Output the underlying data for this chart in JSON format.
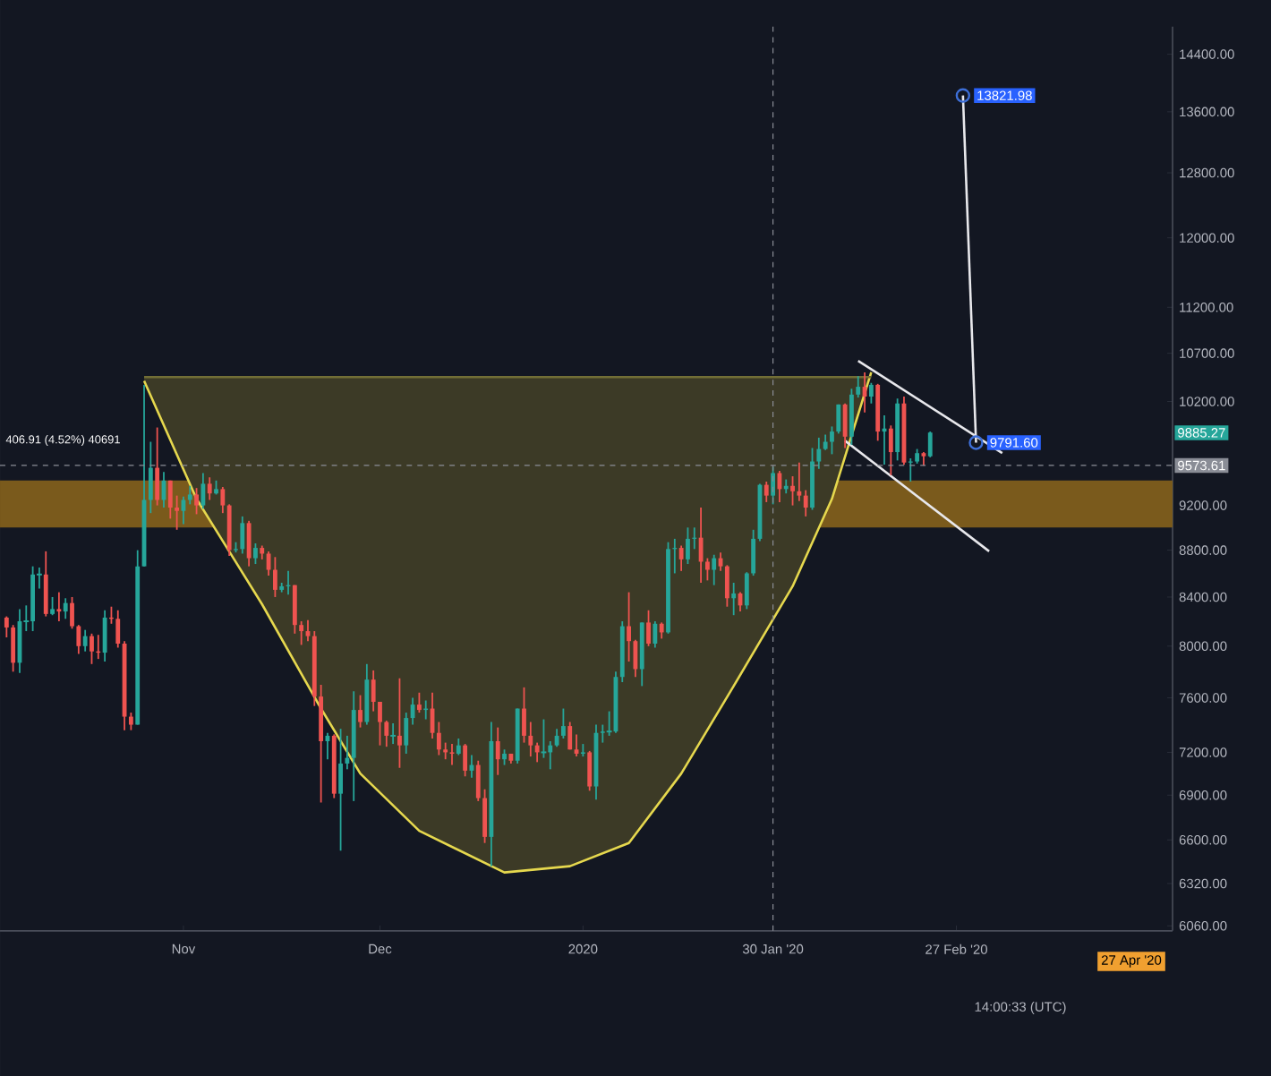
{
  "chart_data": {
    "type": "candlestick",
    "log": true,
    "xlim": [
      "2019-10-04",
      "2020-03-31"
    ],
    "ylim": [
      6030,
      14800
    ],
    "xticks": [
      {
        "value": "2019-11-01",
        "label": "Nov"
      },
      {
        "value": "2019-12-01",
        "label": "Dec"
      },
      {
        "value": "2020-01-01",
        "label": "2020"
      },
      {
        "value": "2020-01-30",
        "label": "30 Jan '20"
      },
      {
        "value": "2020-02-27",
        "label": "27 Feb '20"
      }
    ],
    "yticks": [
      {
        "value": 6060,
        "label": "6060.00"
      },
      {
        "value": 6320,
        "label": "6320.00"
      },
      {
        "value": 6600,
        "label": "6600.00"
      },
      {
        "value": 6900,
        "label": "6900.00"
      },
      {
        "value": 7200,
        "label": "7200.00"
      },
      {
        "value": 7600,
        "label": "7600.00"
      },
      {
        "value": 8000,
        "label": "8000.00"
      },
      {
        "value": 8400,
        "label": "8400.00"
      },
      {
        "value": 8800,
        "label": "8800.00"
      },
      {
        "value": 9200,
        "label": "9200.00"
      },
      {
        "value": 10200,
        "label": "10200.00"
      },
      {
        "value": 10700,
        "label": "10700.00"
      },
      {
        "value": 11200,
        "label": "11200.00"
      },
      {
        "value": 12000,
        "label": "12000.00"
      },
      {
        "value": 12800,
        "label": "12800.00"
      },
      {
        "value": 13600,
        "label": "13600.00"
      },
      {
        "value": 14400,
        "label": "14400.00"
      }
    ],
    "x": [
      "2019-10-05",
      "2019-10-06",
      "2019-10-07",
      "2019-10-08",
      "2019-10-09",
      "2019-10-10",
      "2019-10-11",
      "2019-10-12",
      "2019-10-13",
      "2019-10-14",
      "2019-10-15",
      "2019-10-16",
      "2019-10-17",
      "2019-10-18",
      "2019-10-19",
      "2019-10-20",
      "2019-10-21",
      "2019-10-22",
      "2019-10-23",
      "2019-10-24",
      "2019-10-25",
      "2019-10-26",
      "2019-10-27",
      "2019-10-28",
      "2019-10-29",
      "2019-10-30",
      "2019-10-31",
      "2019-11-01",
      "2019-11-02",
      "2019-11-03",
      "2019-11-04",
      "2019-11-05",
      "2019-11-06",
      "2019-11-07",
      "2019-11-08",
      "2019-11-09",
      "2019-11-10",
      "2019-11-11",
      "2019-11-12",
      "2019-11-13",
      "2019-11-14",
      "2019-11-15",
      "2019-11-16",
      "2019-11-17",
      "2019-11-18",
      "2019-11-19",
      "2019-11-20",
      "2019-11-21",
      "2019-11-22",
      "2019-11-23",
      "2019-11-24",
      "2019-11-25",
      "2019-11-26",
      "2019-11-27",
      "2019-11-28",
      "2019-11-29",
      "2019-11-30",
      "2019-12-01",
      "2019-12-02",
      "2019-12-03",
      "2019-12-04",
      "2019-12-05",
      "2019-12-06",
      "2019-12-07",
      "2019-12-08",
      "2019-12-09",
      "2019-12-10",
      "2019-12-11",
      "2019-12-12",
      "2019-12-13",
      "2019-12-14",
      "2019-12-15",
      "2019-12-16",
      "2019-12-17",
      "2019-12-18",
      "2019-12-19",
      "2019-12-20",
      "2019-12-21",
      "2019-12-22",
      "2019-12-23",
      "2019-12-24",
      "2019-12-25",
      "2019-12-26",
      "2019-12-27",
      "2019-12-28",
      "2019-12-29",
      "2019-12-30",
      "2019-12-31",
      "2020-01-01",
      "2020-01-02",
      "2020-01-03",
      "2020-01-04",
      "2020-01-05",
      "2020-01-06",
      "2020-01-07",
      "2020-01-08",
      "2020-01-09",
      "2020-01-10",
      "2020-01-11",
      "2020-01-12",
      "2020-01-13",
      "2020-01-14",
      "2020-01-15",
      "2020-01-16",
      "2020-01-17",
      "2020-01-18",
      "2020-01-19",
      "2020-01-20",
      "2020-01-21",
      "2020-01-22",
      "2020-01-23",
      "2020-01-24",
      "2020-01-25",
      "2020-01-26",
      "2020-01-27",
      "2020-01-28",
      "2020-01-29",
      "2020-01-30",
      "2020-01-31",
      "2020-02-01",
      "2020-02-02",
      "2020-02-03",
      "2020-02-04",
      "2020-02-05",
      "2020-02-06",
      "2020-02-07",
      "2020-02-08",
      "2020-02-09",
      "2020-02-10",
      "2020-02-11",
      "2020-02-12",
      "2020-02-13",
      "2020-02-14",
      "2020-02-15",
      "2020-02-16",
      "2020-02-17",
      "2020-02-18",
      "2020-02-19",
      "2020-02-20",
      "2020-02-21",
      "2020-02-22",
      "2020-02-23"
    ],
    "ohlc": [
      [
        8230,
        8240,
        8070,
        8150
      ],
      [
        8150,
        8170,
        7800,
        7870
      ],
      [
        7870,
        8300,
        7790,
        8200
      ],
      [
        8200,
        8330,
        8120,
        8200
      ],
      [
        8200,
        8660,
        8120,
        8590
      ],
      [
        8590,
        8650,
        8470,
        8590
      ],
      [
        8590,
        8790,
        8240,
        8260
      ],
      [
        8260,
        8400,
        8250,
        8300
      ],
      [
        8300,
        8440,
        8200,
        8280
      ],
      [
        8280,
        8390,
        8220,
        8350
      ],
      [
        8350,
        8400,
        8140,
        8160
      ],
      [
        8160,
        8170,
        7940,
        8000
      ],
      [
        8000,
        8130,
        7960,
        8080
      ],
      [
        8080,
        8100,
        7860,
        7960
      ],
      [
        7960,
        8090,
        7900,
        7950
      ],
      [
        7950,
        8290,
        7880,
        8230
      ],
      [
        8230,
        8320,
        8180,
        8220
      ],
      [
        8220,
        8290,
        7990,
        8020
      ],
      [
        8020,
        8040,
        7360,
        7460
      ],
      [
        7460,
        7490,
        7360,
        7400
      ],
      [
        7400,
        8800,
        7400,
        8660
      ],
      [
        8660,
        10370,
        8660,
        9250
      ],
      [
        9250,
        9800,
        9130,
        9550
      ],
      [
        9550,
        9940,
        9200,
        9250
      ],
      [
        9250,
        9510,
        9180,
        9430
      ],
      [
        9430,
        9430,
        9080,
        9180
      ],
      [
        9180,
        9290,
        8980,
        9150
      ],
      [
        9150,
        9280,
        9030,
        9250
      ],
      [
        9250,
        9380,
        9210,
        9300
      ],
      [
        9300,
        9360,
        9120,
        9200
      ],
      [
        9200,
        9500,
        9170,
        9400
      ],
      [
        9400,
        9460,
        9250,
        9310
      ],
      [
        9310,
        9430,
        9300,
        9350
      ],
      [
        9350,
        9370,
        9130,
        9200
      ],
      [
        9200,
        9210,
        8750,
        8800
      ],
      [
        8800,
        8870,
        8780,
        8810
      ],
      [
        8810,
        9100,
        8770,
        9040
      ],
      [
        9040,
        9060,
        8660,
        8730
      ],
      [
        8730,
        8860,
        8680,
        8820
      ],
      [
        8820,
        8840,
        8720,
        8770
      ],
      [
        8770,
        8790,
        8580,
        8630
      ],
      [
        8630,
        8740,
        8400,
        8460
      ],
      [
        8460,
        8520,
        8440,
        8490
      ],
      [
        8490,
        8620,
        8420,
        8500
      ],
      [
        8500,
        8500,
        8100,
        8170
      ],
      [
        8170,
        8200,
        8010,
        8120
      ],
      [
        8120,
        8210,
        8040,
        8080
      ],
      [
        8080,
        8120,
        7540,
        7610
      ],
      [
        7610,
        7700,
        6850,
        7280
      ],
      [
        7280,
        7340,
        7150,
        7320
      ],
      [
        7320,
        7330,
        6880,
        6910
      ],
      [
        6910,
        7370,
        6530,
        7120
      ],
      [
        7120,
        7320,
        7080,
        7160
      ],
      [
        7160,
        7650,
        6860,
        7510
      ],
      [
        7510,
        7620,
        7380,
        7420
      ],
      [
        7420,
        7860,
        7400,
        7740
      ],
      [
        7740,
        7810,
        7500,
        7570
      ],
      [
        7570,
        7570,
        7250,
        7420
      ],
      [
        7420,
        7430,
        7240,
        7320
      ],
      [
        7320,
        7410,
        7260,
        7320
      ],
      [
        7320,
        7750,
        7090,
        7250
      ],
      [
        7250,
        7490,
        7190,
        7450
      ],
      [
        7450,
        7600,
        7400,
        7550
      ],
      [
        7550,
        7640,
        7490,
        7510
      ],
      [
        7510,
        7580,
        7440,
        7520
      ],
      [
        7520,
        7640,
        7300,
        7340
      ],
      [
        7340,
        7420,
        7180,
        7220
      ],
      [
        7220,
        7270,
        7150,
        7200
      ],
      [
        7200,
        7260,
        7110,
        7190
      ],
      [
        7190,
        7300,
        7180,
        7250
      ],
      [
        7250,
        7260,
        7030,
        7070
      ],
      [
        7070,
        7180,
        7020,
        7110
      ],
      [
        7110,
        7140,
        6860,
        6880
      ],
      [
        6880,
        6940,
        6580,
        6620
      ],
      [
        6620,
        7420,
        6430,
        7280
      ],
      [
        7280,
        7380,
        7040,
        7150
      ],
      [
        7150,
        7220,
        7110,
        7190
      ],
      [
        7190,
        7190,
        7120,
        7140
      ],
      [
        7140,
        7520,
        7120,
        7520
      ],
      [
        7520,
        7680,
        7270,
        7320
      ],
      [
        7320,
        7420,
        7170,
        7250
      ],
      [
        7250,
        7270,
        7130,
        7200
      ],
      [
        7200,
        7440,
        7160,
        7200
      ],
      [
        7200,
        7280,
        7080,
        7250
      ],
      [
        7250,
        7370,
        7240,
        7320
      ],
      [
        7320,
        7520,
        7300,
        7390
      ],
      [
        7390,
        7420,
        7220,
        7220
      ],
      [
        7220,
        7330,
        7170,
        7190
      ],
      [
        7190,
        7260,
        7170,
        7200
      ],
      [
        7200,
        7210,
        6930,
        6960
      ],
      [
        6960,
        7400,
        6870,
        7340
      ],
      [
        7340,
        7400,
        7270,
        7350
      ],
      [
        7350,
        7500,
        7320,
        7350
      ],
      [
        7350,
        7800,
        7340,
        7760
      ],
      [
        7760,
        8200,
        7720,
        8160
      ],
      [
        8160,
        8440,
        7880,
        8040
      ],
      [
        8040,
        8050,
        7760,
        7820
      ],
      [
        7820,
        8190,
        7690,
        8190
      ],
      [
        8190,
        8290,
        8000,
        8020
      ],
      [
        8020,
        8200,
        7990,
        8180
      ],
      [
        8180,
        8190,
        8060,
        8110
      ],
      [
        8110,
        8870,
        8100,
        8810
      ],
      [
        8810,
        8900,
        8600,
        8820
      ],
      [
        8820,
        8840,
        8620,
        8720
      ],
      [
        8720,
        9000,
        8680,
        8900
      ],
      [
        8900,
        9000,
        8810,
        8910
      ],
      [
        8910,
        9180,
        8520,
        8700
      ],
      [
        8700,
        8730,
        8540,
        8630
      ],
      [
        8630,
        8760,
        8500,
        8730
      ],
      [
        8730,
        8780,
        8620,
        8660
      ],
      [
        8660,
        8670,
        8320,
        8390
      ],
      [
        8390,
        8520,
        8250,
        8430
      ],
      [
        8430,
        8440,
        8280,
        8330
      ],
      [
        8330,
        8610,
        8300,
        8600
      ],
      [
        8600,
        8980,
        8580,
        8900
      ],
      [
        8900,
        9400,
        8880,
        9390
      ],
      [
        9390,
        9420,
        9230,
        9290
      ],
      [
        9290,
        9560,
        9210,
        9500
      ],
      [
        9500,
        9520,
        9230,
        9350
      ],
      [
        9350,
        9440,
        9310,
        9380
      ],
      [
        9380,
        9470,
        9200,
        9330
      ],
      [
        9330,
        9600,
        9240,
        9290
      ],
      [
        9290,
        9340,
        9100,
        9180
      ],
      [
        9180,
        9740,
        9160,
        9610
      ],
      [
        9610,
        9840,
        9540,
        9730
      ],
      [
        9730,
        9870,
        9720,
        9800
      ],
      [
        9800,
        9950,
        9680,
        9900
      ],
      [
        9900,
        10170,
        9880,
        10170
      ],
      [
        10170,
        10180,
        9740,
        9850
      ],
      [
        9850,
        10330,
        9770,
        10270
      ],
      [
        10270,
        10460,
        10240,
        10350
      ],
      [
        10350,
        10500,
        10090,
        10250
      ],
      [
        10250,
        10390,
        10180,
        10370
      ],
      [
        10370,
        10380,
        9810,
        9900
      ],
      [
        9900,
        10060,
        9580,
        9930
      ],
      [
        9930,
        9960,
        9480,
        9700
      ],
      [
        9700,
        10230,
        9620,
        10180
      ],
      [
        10180,
        10250,
        9580,
        9600
      ],
      [
        9600,
        9640,
        9420,
        9610
      ],
      [
        9610,
        9730,
        9590,
        9690
      ],
      [
        9690,
        9700,
        9570,
        9660
      ],
      [
        9660,
        9900,
        9650,
        9890
      ]
    ],
    "series": [
      {
        "type": "line",
        "color": "#e6d84e",
        "x": [
          "2019-10-26",
          "2019-11-03",
          "2019-11-13",
          "2019-11-22",
          "2019-11-28",
          "2019-12-07",
          "2019-12-20",
          "2019-12-30",
          "2020-01-08",
          "2020-01-16",
          "2020-01-24",
          "2020-02-02",
          "2020-02-08",
          "2020-02-14"
        ],
        "values": [
          10410,
          9260,
          8340,
          7520,
          7050,
          6660,
          6390,
          6430,
          6580,
          7050,
          7690,
          8490,
          9260,
          10500
        ]
      },
      {
        "type": "line",
        "color": "#726e36",
        "x": [
          "2019-10-26",
          "2020-02-14"
        ],
        "values": [
          10450,
          10450
        ]
      },
      {
        "type": "line",
        "color": "#e8e8ec",
        "x": [
          "2020-02-12",
          "2020-03-05"
        ],
        "values": [
          10620,
          9690
        ]
      },
      {
        "type": "line",
        "color": "#e8e8ec",
        "x": [
          "2020-02-10",
          "2020-03-03"
        ],
        "values": [
          9810,
          8790
        ]
      },
      {
        "type": "line",
        "color": "#e8e8ec",
        "marker": "circle",
        "x": [
          "2020-02-28",
          "2020-03-01"
        ],
        "values": [
          13821.98,
          9791.6
        ],
        "value_labels": [
          "13821.98",
          "9791.60"
        ]
      }
    ],
    "bands": [
      {
        "axis": "y",
        "from": 9000,
        "to": 9430,
        "color": "#7a5a1c"
      }
    ],
    "ref_lines": [
      {
        "axis": "x",
        "value": "2020-01-30",
        "line_style": "dashed",
        "color": "#8a8d96"
      },
      {
        "axis": "y",
        "value": 9573.61,
        "label": "9573.61",
        "line_style": "dashed",
        "color": "#8a8d96"
      }
    ],
    "annotations": [
      "9885.27",
      "27 Apr '20",
      "14:00:33 (UTC)",
      "406.91 (4.52%) 40691"
    ]
  }
}
